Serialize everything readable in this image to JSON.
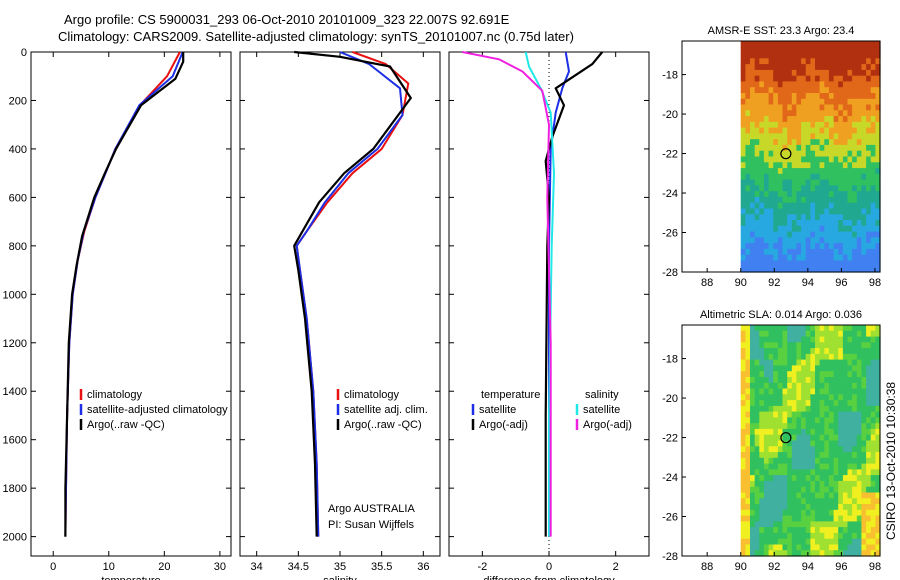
{
  "header": {
    "title_line1": "Argo profile: CS 5900031_293 06-Oct-2010 20101009_323 22.007S 92.691E",
    "title_line2": "Climatology: CARS2009. Satellite-adjusted climatology: synTS_20101007.nc (0.75d later)"
  },
  "colors": {
    "red": "#e81010",
    "blue": "#1c2ee6",
    "black": "#000000",
    "cyan": "#20e8e8",
    "magenta": "#f020e0"
  },
  "stamp": "CSIRO 13-Oct-2010 10:30:38",
  "chart_data": [
    {
      "type": "line",
      "xlabel": "temperature",
      "xlim": [
        -4,
        32
      ],
      "ylim": [
        2080,
        0
      ],
      "xticks": [
        0,
        10,
        20,
        30
      ],
      "yticks": [
        0,
        200,
        400,
        600,
        800,
        1000,
        1200,
        1400,
        1600,
        1800,
        2000
      ],
      "legend": [
        "climatology",
        "satellite-adjusted climatology",
        "Argo(..raw -QC)"
      ],
      "series": [
        {
          "name": "climatology",
          "color": "red",
          "x": [
            22.8,
            20.5,
            15.6,
            11.2,
            9.4,
            7.6,
            5.6,
            4.4,
            3.5,
            2.9,
            2.5,
            2.3,
            2.2
          ],
          "y": [
            0,
            100,
            220,
            400,
            500,
            600,
            740,
            860,
            1000,
            1200,
            1500,
            1800,
            2000
          ]
        },
        {
          "name": "satellite-adjusted climatology",
          "color": "blue",
          "x": [
            23.3,
            21.5,
            15.5,
            11.2,
            9.4,
            7.6,
            5.5,
            4.4,
            3.5,
            2.9,
            2.5,
            2.3,
            2.2
          ],
          "y": [
            0,
            100,
            220,
            400,
            500,
            600,
            740,
            860,
            1000,
            1200,
            1500,
            1800,
            2000
          ]
        },
        {
          "name": "Argo(..raw -QC)",
          "color": "black",
          "x": [
            23.4,
            23.4,
            22.0,
            15.8,
            11.3,
            9.3,
            7.4,
            5.2,
            4.2,
            3.4,
            2.8,
            2.5,
            2.2,
            2.2
          ],
          "y": [
            0,
            40,
            110,
            220,
            400,
            500,
            600,
            760,
            880,
            1000,
            1200,
            1500,
            1800,
            2000
          ]
        }
      ]
    },
    {
      "type": "line",
      "xlabel": "salinity",
      "xlim": [
        33.8,
        36.2
      ],
      "ylim": [
        2080,
        0
      ],
      "xticks": [
        34,
        34.5,
        35,
        35.5,
        36
      ],
      "legend": [
        "climatology",
        "satellite adj. clim.",
        "Argo(..raw -QC)"
      ],
      "annotation": [
        "Argo AUSTRALIA",
        "PI: Susan Wijffels"
      ],
      "series": [
        {
          "name": "climatology",
          "color": "red",
          "x": [
            35.15,
            35.55,
            35.82,
            35.75,
            35.5,
            35.15,
            34.85,
            34.6,
            34.48,
            34.52,
            34.6,
            34.68,
            34.72,
            34.74
          ],
          "y": [
            0,
            50,
            130,
            260,
            400,
            500,
            620,
            740,
            800,
            900,
            1100,
            1400,
            1700,
            2000
          ]
        },
        {
          "name": "satellite adj. clim.",
          "color": "blue",
          "x": [
            35.0,
            35.35,
            35.72,
            35.75,
            35.45,
            35.1,
            34.82,
            34.6,
            34.48,
            34.52,
            34.6,
            34.68,
            34.72,
            34.74
          ],
          "y": [
            0,
            50,
            150,
            260,
            400,
            500,
            620,
            740,
            800,
            900,
            1100,
            1400,
            1700,
            2000
          ]
        },
        {
          "name": "Argo(..raw -QC)",
          "color": "black",
          "x": [
            34.45,
            35.0,
            35.6,
            35.85,
            35.7,
            35.4,
            35.05,
            34.75,
            34.55,
            34.45,
            34.5,
            34.58,
            34.66,
            34.7,
            34.72
          ],
          "y": [
            0,
            20,
            60,
            190,
            260,
            400,
            500,
            620,
            740,
            800,
            900,
            1100,
            1400,
            1700,
            2000
          ]
        }
      ]
    },
    {
      "type": "line",
      "xlabel": "difference from climatology",
      "xlim": [
        -3,
        3
      ],
      "ylim": [
        2080,
        0
      ],
      "xticks": [
        -2,
        0,
        2
      ],
      "legend_columns": [
        {
          "header": "temperature",
          "items": [
            "satellite",
            "Argo(-adj)"
          ]
        },
        {
          "header": "salinity",
          "items": [
            "satellite",
            "Argo(-adj)"
          ]
        }
      ],
      "series": [
        {
          "name": "temperature satellite",
          "color": "blue",
          "x": [
            0.5,
            0.6,
            0.4,
            0.2,
            0.05,
            0.0,
            0.0,
            0.0
          ],
          "y": [
            0,
            80,
            150,
            250,
            400,
            800,
            1500,
            2000
          ]
        },
        {
          "name": "temperature Argo(-adj)",
          "color": "black",
          "x": [
            1.6,
            1.3,
            0.2,
            0.45,
            0.1,
            -0.1,
            0.0,
            -0.05,
            -0.1,
            -0.1
          ],
          "y": [
            0,
            50,
            150,
            220,
            350,
            450,
            600,
            800,
            1500,
            2000
          ]
        },
        {
          "name": "salinity satellite",
          "color": "cyan",
          "x": [
            -0.7,
            -0.6,
            -0.25,
            0.05,
            0.15,
            0.08,
            0.0,
            0.0
          ],
          "y": [
            0,
            60,
            150,
            250,
            500,
            800,
            1500,
            2000
          ]
        },
        {
          "name": "salinity Argo(-adj)",
          "color": "magenta",
          "x": [
            -2.6,
            -1.5,
            -0.8,
            -0.2,
            0.0,
            -0.05,
            0.05,
            0.05
          ],
          "y": [
            0,
            30,
            80,
            160,
            300,
            600,
            1200,
            2000
          ]
        }
      ]
    },
    {
      "type": "heatmap",
      "title": "AMSR-E SST: 23.3 Argo: 23.4",
      "xlim": [
        86.5,
        98.3
      ],
      "ylim": [
        -28,
        -16.3
      ],
      "xticks": [
        88,
        90,
        92,
        94,
        96,
        98
      ],
      "yticks": [
        -18,
        -20,
        -22,
        -24,
        -26,
        -28
      ],
      "data_xlim": [
        90,
        98.3
      ],
      "marker": {
        "lon": 92.691,
        "lat": -22.007
      },
      "colors": [
        "#b03010",
        "#e06818",
        "#f0a020",
        "#c8d828",
        "#30c060",
        "#20a890",
        "#28a8e0",
        "#4080f0"
      ]
    },
    {
      "type": "heatmap",
      "title": "Altimetric SLA: 0.014 Argo: 0.036",
      "xlim": [
        86.5,
        98.3
      ],
      "ylim": [
        -28,
        -16.3
      ],
      "xticks": [
        88,
        90,
        92,
        94,
        96,
        98
      ],
      "yticks": [
        -18,
        -20,
        -22,
        -24,
        -26,
        -28
      ],
      "data_xlim": [
        90,
        98.3
      ],
      "marker": {
        "lon": 92.691,
        "lat": -22.007
      },
      "colors": [
        "#30c060",
        "#58d040",
        "#a0e030",
        "#f0f020",
        "#f8c030",
        "#40b0a0"
      ]
    }
  ]
}
